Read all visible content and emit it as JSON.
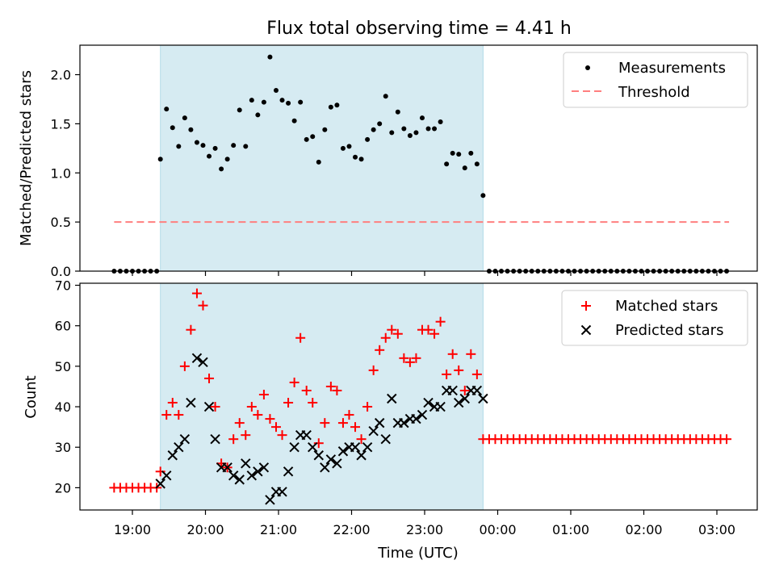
{
  "title": "Flux total observing time = 4.41 h",
  "xlabel": "Time (UTC)",
  "x_tick_labels": [
    "19:00",
    "20:00",
    "21:00",
    "22:00",
    "23:00",
    "00:00",
    "01:00",
    "02:00",
    "03:00"
  ],
  "colors": {
    "observing_span": "#add8e6",
    "measurements": "#000000",
    "threshold": "#ff7f7f",
    "matched": "#ff0000",
    "predicted": "#000000"
  },
  "chart_data": [
    {
      "type": "scatter",
      "ylabel": "Matched/Predicted stars",
      "ylim": [
        0,
        2.3
      ],
      "y_ticks": [
        "0.0",
        "0.5",
        "1.0",
        "1.5",
        "2.0"
      ],
      "legend_position": "upper right",
      "observing_span": [
        "19:23",
        "23:48"
      ],
      "threshold": {
        "name": "Threshold",
        "value": 0.5,
        "x_range": [
          "18:45",
          "03:10"
        ]
      },
      "series": [
        {
          "name": "Measurements",
          "marker": "dot",
          "points": [
            [
              "18:45",
              0
            ],
            [
              "18:50",
              0
            ],
            [
              "18:55",
              0
            ],
            [
              "19:00",
              0
            ],
            [
              "19:05",
              0
            ],
            [
              "19:10",
              0
            ],
            [
              "19:15",
              0
            ],
            [
              "19:20",
              0
            ],
            [
              "19:23",
              1.14
            ],
            [
              "19:28",
              1.65
            ],
            [
              "19:33",
              1.46
            ],
            [
              "19:38",
              1.27
            ],
            [
              "19:43",
              1.56
            ],
            [
              "19:48",
              1.44
            ],
            [
              "19:53",
              1.31
            ],
            [
              "19:58",
              1.28
            ],
            [
              "20:03",
              1.17
            ],
            [
              "20:08",
              1.25
            ],
            [
              "20:13",
              1.04
            ],
            [
              "20:18",
              1.14
            ],
            [
              "20:23",
              1.28
            ],
            [
              "20:28",
              1.64
            ],
            [
              "20:33",
              1.27
            ],
            [
              "20:38",
              1.74
            ],
            [
              "20:43",
              1.59
            ],
            [
              "20:48",
              1.72
            ],
            [
              "20:53",
              2.18
            ],
            [
              "20:58",
              1.84
            ],
            [
              "21:03",
              1.74
            ],
            [
              "21:08",
              1.71
            ],
            [
              "21:13",
              1.53
            ],
            [
              "21:18",
              1.72
            ],
            [
              "21:23",
              1.34
            ],
            [
              "21:28",
              1.37
            ],
            [
              "21:33",
              1.11
            ],
            [
              "21:38",
              1.44
            ],
            [
              "21:43",
              1.67
            ],
            [
              "21:48",
              1.69
            ],
            [
              "21:53",
              1.25
            ],
            [
              "21:58",
              1.27
            ],
            [
              "22:03",
              1.16
            ],
            [
              "22:08",
              1.14
            ],
            [
              "22:13",
              1.34
            ],
            [
              "22:18",
              1.44
            ],
            [
              "22:23",
              1.5
            ],
            [
              "22:28",
              1.78
            ],
            [
              "22:33",
              1.41
            ],
            [
              "22:38",
              1.62
            ],
            [
              "22:43",
              1.45
            ],
            [
              "22:48",
              1.38
            ],
            [
              "22:53",
              1.41
            ],
            [
              "22:58",
              1.56
            ],
            [
              "23:03",
              1.45
            ],
            [
              "23:08",
              1.45
            ],
            [
              "23:13",
              1.52
            ],
            [
              "23:18",
              1.09
            ],
            [
              "23:23",
              1.2
            ],
            [
              "23:28",
              1.19
            ],
            [
              "23:33",
              1.05
            ],
            [
              "23:38",
              1.2
            ],
            [
              "23:43",
              1.09
            ],
            [
              "23:48",
              0.77
            ],
            [
              "23:53",
              0
            ],
            [
              "23:58",
              0
            ],
            [
              "00:03",
              0
            ],
            [
              "00:08",
              0
            ],
            [
              "00:13",
              0
            ],
            [
              "00:18",
              0
            ],
            [
              "00:23",
              0
            ],
            [
              "00:28",
              0
            ],
            [
              "00:33",
              0
            ],
            [
              "00:38",
              0
            ],
            [
              "00:43",
              0
            ],
            [
              "00:48",
              0
            ],
            [
              "00:53",
              0
            ],
            [
              "00:58",
              0
            ],
            [
              "01:03",
              0
            ],
            [
              "01:08",
              0
            ],
            [
              "01:13",
              0
            ],
            [
              "01:18",
              0
            ],
            [
              "01:23",
              0
            ],
            [
              "01:28",
              0
            ],
            [
              "01:33",
              0
            ],
            [
              "01:38",
              0
            ],
            [
              "01:43",
              0
            ],
            [
              "01:48",
              0
            ],
            [
              "01:53",
              0
            ],
            [
              "01:58",
              0
            ],
            [
              "02:03",
              0
            ],
            [
              "02:08",
              0
            ],
            [
              "02:13",
              0
            ],
            [
              "02:18",
              0
            ],
            [
              "02:23",
              0
            ],
            [
              "02:28",
              0
            ],
            [
              "02:33",
              0
            ],
            [
              "02:38",
              0
            ],
            [
              "02:43",
              0
            ],
            [
              "02:48",
              0
            ],
            [
              "02:53",
              0
            ],
            [
              "02:58",
              0
            ],
            [
              "03:03",
              0
            ],
            [
              "03:08",
              0
            ]
          ]
        }
      ]
    },
    {
      "type": "scatter",
      "ylabel": "Count",
      "ylim": [
        14.5,
        70.5
      ],
      "y_ticks": [
        "20",
        "30",
        "40",
        "50",
        "60",
        "70"
      ],
      "legend_position": "upper right",
      "observing_span": [
        "19:23",
        "23:48"
      ],
      "series": [
        {
          "name": "Matched stars",
          "marker": "plus",
          "points": [
            [
              "18:45",
              20
            ],
            [
              "18:50",
              20
            ],
            [
              "18:55",
              20
            ],
            [
              "19:00",
              20
            ],
            [
              "19:05",
              20
            ],
            [
              "19:10",
              20
            ],
            [
              "19:15",
              20
            ],
            [
              "19:20",
              20
            ],
            [
              "19:23",
              24
            ],
            [
              "19:28",
              38
            ],
            [
              "19:33",
              41
            ],
            [
              "19:38",
              38
            ],
            [
              "19:43",
              50
            ],
            [
              "19:48",
              59
            ],
            [
              "19:53",
              68
            ],
            [
              "19:58",
              65
            ],
            [
              "20:03",
              47
            ],
            [
              "20:08",
              40
            ],
            [
              "20:13",
              26
            ],
            [
              "20:18",
              25
            ],
            [
              "20:23",
              32
            ],
            [
              "20:28",
              36
            ],
            [
              "20:33",
              33
            ],
            [
              "20:38",
              40
            ],
            [
              "20:43",
              38
            ],
            [
              "20:48",
              43
            ],
            [
              "20:53",
              37
            ],
            [
              "20:58",
              35
            ],
            [
              "21:03",
              33
            ],
            [
              "21:08",
              41
            ],
            [
              "21:13",
              46
            ],
            [
              "21:18",
              57
            ],
            [
              "21:23",
              44
            ],
            [
              "21:28",
              41
            ],
            [
              "21:33",
              31
            ],
            [
              "21:38",
              36
            ],
            [
              "21:43",
              45
            ],
            [
              "21:48",
              44
            ],
            [
              "21:53",
              36
            ],
            [
              "21:58",
              38
            ],
            [
              "22:03",
              35
            ],
            [
              "22:08",
              32
            ],
            [
              "22:13",
              40
            ],
            [
              "22:18",
              49
            ],
            [
              "22:23",
              54
            ],
            [
              "22:28",
              57
            ],
            [
              "22:33",
              59
            ],
            [
              "22:38",
              58
            ],
            [
              "22:43",
              52
            ],
            [
              "22:48",
              51
            ],
            [
              "22:53",
              52
            ],
            [
              "22:58",
              59
            ],
            [
              "23:03",
              59
            ],
            [
              "23:08",
              58
            ],
            [
              "23:13",
              61
            ],
            [
              "23:18",
              48
            ],
            [
              "23:23",
              53
            ],
            [
              "23:28",
              49
            ],
            [
              "23:33",
              44
            ],
            [
              "23:38",
              53
            ],
            [
              "23:43",
              48
            ],
            [
              "23:48",
              32
            ],
            [
              "23:53",
              32
            ],
            [
              "23:58",
              32
            ],
            [
              "00:03",
              32
            ],
            [
              "00:08",
              32
            ],
            [
              "00:13",
              32
            ],
            [
              "00:18",
              32
            ],
            [
              "00:23",
              32
            ],
            [
              "00:28",
              32
            ],
            [
              "00:33",
              32
            ],
            [
              "00:38",
              32
            ],
            [
              "00:43",
              32
            ],
            [
              "00:48",
              32
            ],
            [
              "00:53",
              32
            ],
            [
              "00:58",
              32
            ],
            [
              "01:03",
              32
            ],
            [
              "01:08",
              32
            ],
            [
              "01:13",
              32
            ],
            [
              "01:18",
              32
            ],
            [
              "01:23",
              32
            ],
            [
              "01:28",
              32
            ],
            [
              "01:33",
              32
            ],
            [
              "01:38",
              32
            ],
            [
              "01:43",
              32
            ],
            [
              "01:48",
              32
            ],
            [
              "01:53",
              32
            ],
            [
              "01:58",
              32
            ],
            [
              "02:03",
              32
            ],
            [
              "02:08",
              32
            ],
            [
              "02:13",
              32
            ],
            [
              "02:18",
              32
            ],
            [
              "02:23",
              32
            ],
            [
              "02:28",
              32
            ],
            [
              "02:33",
              32
            ],
            [
              "02:38",
              32
            ],
            [
              "02:43",
              32
            ],
            [
              "02:48",
              32
            ],
            [
              "02:53",
              32
            ],
            [
              "02:58",
              32
            ],
            [
              "03:03",
              32
            ],
            [
              "03:08",
              32
            ]
          ]
        },
        {
          "name": "Predicted stars",
          "marker": "x",
          "points": [
            [
              "19:23",
              21
            ],
            [
              "19:28",
              23
            ],
            [
              "19:33",
              28
            ],
            [
              "19:38",
              30
            ],
            [
              "19:43",
              32
            ],
            [
              "19:48",
              41
            ],
            [
              "19:53",
              52
            ],
            [
              "19:58",
              51
            ],
            [
              "20:03",
              40
            ],
            [
              "20:08",
              32
            ],
            [
              "20:13",
              25
            ],
            [
              "20:18",
              25
            ],
            [
              "20:23",
              23
            ],
            [
              "20:28",
              22
            ],
            [
              "20:33",
              26
            ],
            [
              "20:38",
              23
            ],
            [
              "20:43",
              24
            ],
            [
              "20:48",
              25
            ],
            [
              "20:53",
              17
            ],
            [
              "20:58",
              19
            ],
            [
              "21:03",
              19
            ],
            [
              "21:08",
              24
            ],
            [
              "21:13",
              30
            ],
            [
              "21:18",
              33
            ],
            [
              "21:23",
              33
            ],
            [
              "21:28",
              30
            ],
            [
              "21:33",
              28
            ],
            [
              "21:38",
              25
            ],
            [
              "21:43",
              27
            ],
            [
              "21:48",
              26
            ],
            [
              "21:53",
              29
            ],
            [
              "21:58",
              30
            ],
            [
              "22:03",
              30
            ],
            [
              "22:08",
              28
            ],
            [
              "22:13",
              30
            ],
            [
              "22:18",
              34
            ],
            [
              "22:23",
              36
            ],
            [
              "22:28",
              32
            ],
            [
              "22:33",
              42
            ],
            [
              "22:38",
              36
            ],
            [
              "22:43",
              36
            ],
            [
              "22:48",
              37
            ],
            [
              "22:53",
              37
            ],
            [
              "22:58",
              38
            ],
            [
              "23:03",
              41
            ],
            [
              "23:08",
              40
            ],
            [
              "23:13",
              40
            ],
            [
              "23:18",
              44
            ],
            [
              "23:23",
              44
            ],
            [
              "23:28",
              41
            ],
            [
              "23:33",
              42
            ],
            [
              "23:38",
              44
            ],
            [
              "23:43",
              44
            ],
            [
              "23:48",
              42
            ]
          ]
        }
      ]
    }
  ]
}
